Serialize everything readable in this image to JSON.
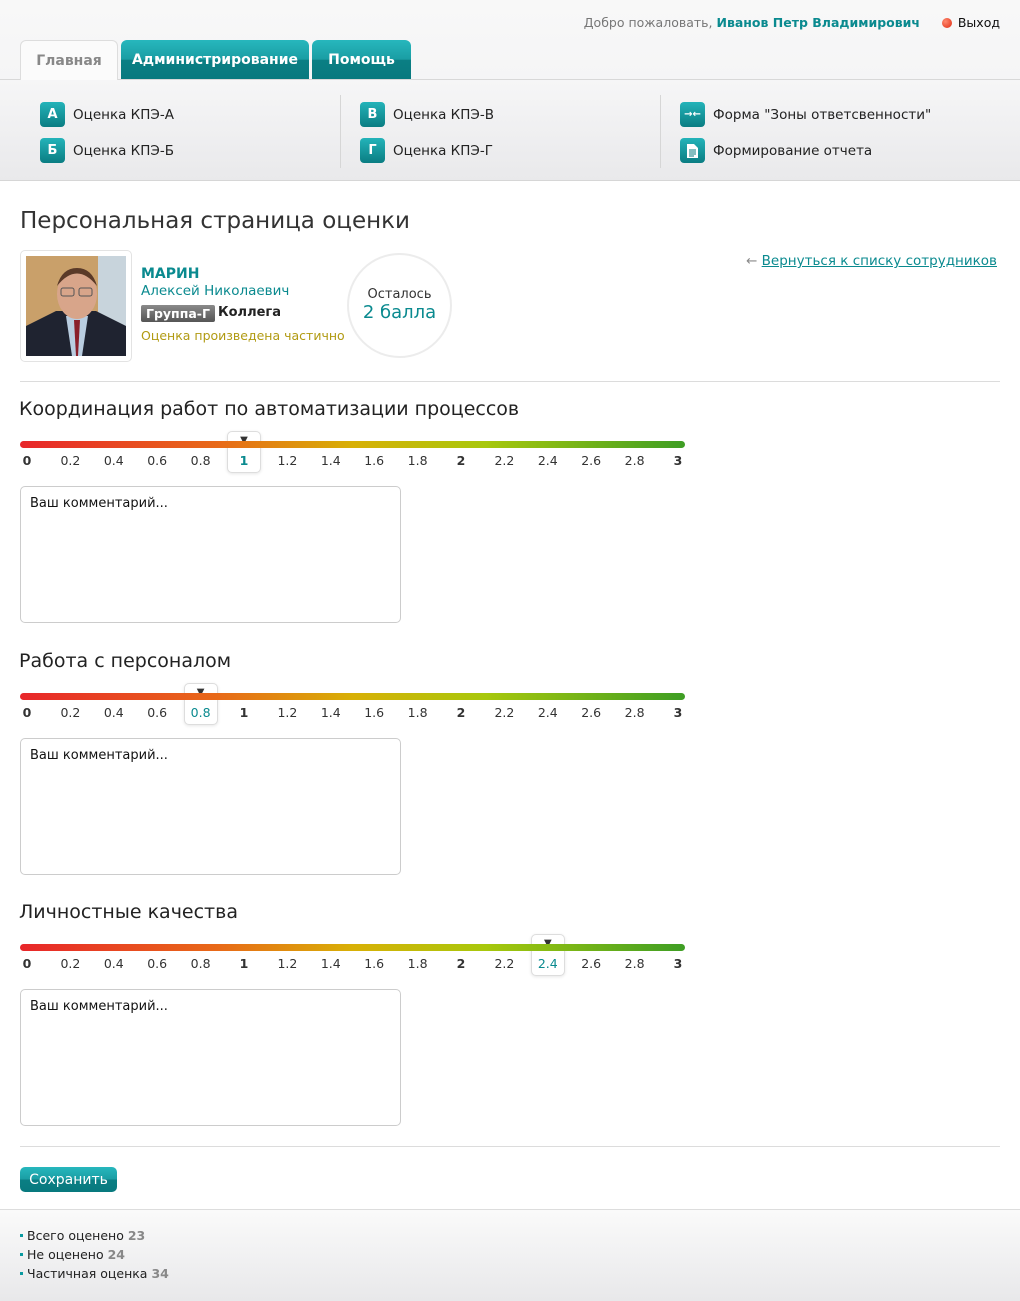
{
  "header": {
    "welcome": "Добро пожаловать,",
    "user": "Иванов Петр Владимирович",
    "logout": "Выход"
  },
  "tabs": [
    {
      "label": "Главная",
      "active": true
    },
    {
      "label": "Администрирование"
    },
    {
      "label": "Помощь"
    }
  ],
  "menu": [
    {
      "icon": "А",
      "label": "Оценка КПЭ-А"
    },
    {
      "icon": "Б",
      "label": "Оценка КПЭ-Б"
    },
    {
      "icon": "В",
      "label": "Оценка КПЭ-В"
    },
    {
      "icon": "Г",
      "label": "Оценка КПЭ-Г"
    },
    {
      "icon": "→←",
      "label": "Форма \"Зоны ответсвенности\""
    },
    {
      "icon": "document-icon",
      "label": "Формирование отчета"
    }
  ],
  "page_title": "Персональная страница оценки",
  "employee": {
    "last_name": "МАРИН",
    "first_names": "Алексей Николаевич",
    "group": "Группа-Г",
    "role": "Коллега",
    "status": "Оценка произведена частично"
  },
  "remaining": {
    "label": "Осталось",
    "value": "2 балла"
  },
  "back_arrow": "←",
  "back_link": "Вернуться к списку сотрудников",
  "scale": [
    "0",
    "0.2",
    "0.4",
    "0.6",
    "0.8",
    "1",
    "1.2",
    "1.4",
    "1.6",
    "1.8",
    "2",
    "2.2",
    "2.4",
    "2.6",
    "2.8",
    "3"
  ],
  "sections": [
    {
      "title": "Координация работ по автоматизации процессов",
      "value": 1,
      "comment_placeholder": "Ваш комментарий..."
    },
    {
      "title": "Работа с персоналом",
      "value": 0.8,
      "comment_placeholder": "Ваш комментарий..."
    },
    {
      "title": "Личностные качества",
      "value": 2.4,
      "comment_placeholder": "Ваш комментарий..."
    }
  ],
  "save_label": "Сохранить",
  "stats": [
    {
      "label": "Всего оценено",
      "value": "23"
    },
    {
      "label": "Не оценено",
      "value": "24"
    },
    {
      "label": "Частичная оценка",
      "value": "34"
    }
  ],
  "colors": {
    "accent": "#0a8a8f",
    "status": "#b19a12"
  }
}
